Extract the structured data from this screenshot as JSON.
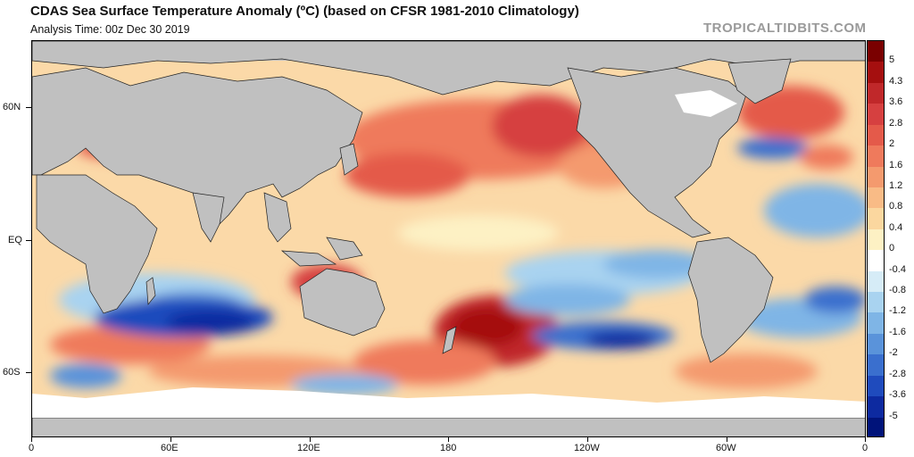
{
  "header": {
    "title": "CDAS Sea Surface Temperature Anomaly (ºC) (based on CFSR 1981-2010 Climatology)",
    "analysis_time": "Analysis Time: 00z Dec 30 2019",
    "watermark": "TROPICALTIDBITS.COM"
  },
  "map": {
    "land_color": "#c0c0c0",
    "ice_color": "#ffffff",
    "x_ticks": [
      "0",
      "60E",
      "120E",
      "180",
      "120W",
      "60W",
      "0"
    ],
    "y_ticks": [
      "60N",
      "EQ",
      "60S"
    ]
  },
  "colorbar": {
    "labels": [
      "5",
      "4.3",
      "3.6",
      "2.8",
      "2",
      "1.6",
      "1.2",
      "0.8",
      "0.4",
      "0",
      "-0.4",
      "-0.8",
      "-1.2",
      "-1.6",
      "-2",
      "-2.8",
      "-3.6",
      "-5"
    ],
    "colors": [
      "#7a0000",
      "#a50f0f",
      "#c0282a",
      "#d64040",
      "#e45a4a",
      "#ef7a5c",
      "#f49a6e",
      "#f9bb86",
      "#fbd79f",
      "#fdf1c4",
      "#ffffff",
      "#d6ecf7",
      "#a9d3f0",
      "#7fb5e6",
      "#5a93da",
      "#3a6fce",
      "#1f4bbd",
      "#0d2aa0",
      "#00137a"
    ]
  }
}
